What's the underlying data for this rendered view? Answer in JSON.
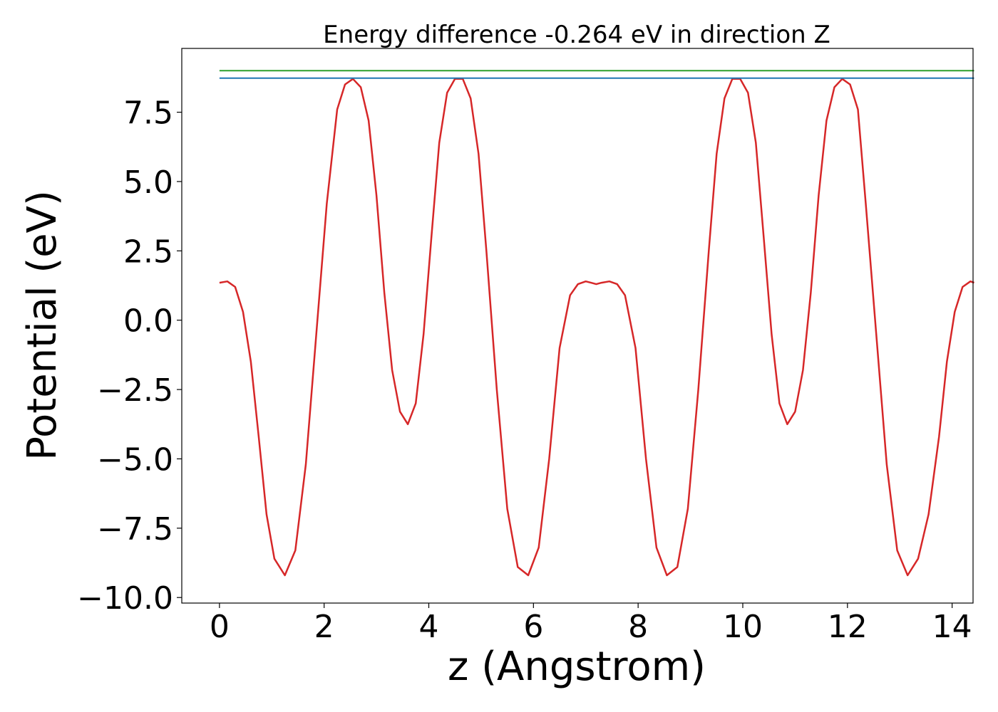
{
  "chart_data": {
    "type": "line",
    "title": "Energy difference -0.264 eV in direction Z",
    "xlabel": "z (Angstrom)",
    "ylabel": "Potential (eV)",
    "xlim": [
      -0.72,
      14.4
    ],
    "ylim": [
      -10.2,
      9.8
    ],
    "xticks": [
      0,
      2,
      4,
      6,
      8,
      10,
      12,
      14
    ],
    "xtick_labels": [
      "0",
      "2",
      "4",
      "6",
      "8",
      "10",
      "12",
      "14"
    ],
    "yticks": [
      -10.0,
      -7.5,
      -5.0,
      -2.5,
      0.0,
      2.5,
      5.0,
      7.5
    ],
    "ytick_labels": [
      "−10.0",
      "−7.5",
      "−5.0",
      "−2.5",
      "0.0",
      "2.5",
      "5.0",
      "7.5"
    ],
    "grid": false,
    "series": [
      {
        "color": "#d62728",
        "x": [
          0,
          0.15,
          0.3,
          0.45,
          0.6,
          0.75,
          0.9,
          1.05,
          1.25,
          1.45,
          1.65,
          1.85,
          2.05,
          2.25,
          2.4,
          2.55,
          2.7,
          2.85,
          3.0,
          3.15,
          3.3,
          3.45,
          3.6,
          3.75,
          3.9,
          4.05,
          4.2,
          4.35,
          4.5,
          4.65,
          4.8,
          4.95,
          5.1,
          5.3,
          5.5,
          5.7,
          5.9,
          6.1,
          6.3,
          6.5,
          6.7,
          6.85,
          7.0,
          7.1,
          7.2,
          7.3,
          7.45,
          7.6,
          7.75,
          7.95,
          8.15,
          8.35,
          8.55,
          8.75,
          8.95,
          9.15,
          9.35,
          9.5,
          9.65,
          9.8,
          9.95,
          10.1,
          10.25,
          10.4,
          10.55,
          10.7,
          10.85,
          11.0,
          11.15,
          11.3,
          11.45,
          11.6,
          11.75,
          11.9,
          12.05,
          12.2,
          12.35,
          12.55,
          12.75,
          12.95,
          13.15,
          13.35,
          13.55,
          13.75,
          13.9,
          14.05,
          14.2,
          14.35,
          14.42
        ],
        "y": [
          1.35,
          1.4,
          1.2,
          0.3,
          -1.5,
          -4.2,
          -7.0,
          -8.6,
          -9.2,
          -8.3,
          -5.2,
          -0.5,
          4.2,
          7.6,
          8.5,
          8.7,
          8.4,
          7.2,
          4.5,
          1.0,
          -1.8,
          -3.3,
          -3.75,
          -3.0,
          -0.5,
          3.0,
          6.4,
          8.2,
          8.7,
          8.7,
          8.0,
          6.0,
          2.5,
          -2.5,
          -6.8,
          -8.9,
          -9.2,
          -8.2,
          -5.0,
          -1.0,
          0.9,
          1.3,
          1.4,
          1.35,
          1.3,
          1.35,
          1.4,
          1.3,
          0.9,
          -1.0,
          -5.0,
          -8.2,
          -9.2,
          -8.9,
          -6.8,
          -2.5,
          2.5,
          6.0,
          8.0,
          8.7,
          8.7,
          8.2,
          6.4,
          3.0,
          -0.5,
          -3.0,
          -3.75,
          -3.3,
          -1.8,
          1.0,
          4.5,
          7.2,
          8.4,
          8.7,
          8.5,
          7.6,
          4.2,
          -0.5,
          -5.2,
          -8.3,
          -9.2,
          -8.6,
          -7.0,
          -4.2,
          -1.5,
          0.3,
          1.2,
          1.4,
          1.35
        ]
      },
      {
        "color": "#1f77b4",
        "x": [
          0,
          14.42
        ],
        "y": [
          8.73,
          8.73
        ]
      },
      {
        "color": "#2ca02c",
        "x": [
          0,
          14.42
        ],
        "y": [
          9.0,
          9.0
        ]
      }
    ]
  }
}
